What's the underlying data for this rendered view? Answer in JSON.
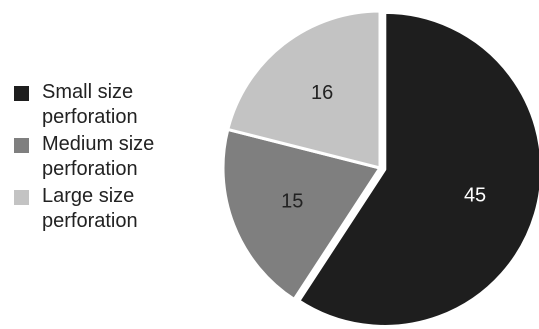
{
  "chart_data": {
    "type": "pie",
    "categories": [
      "Small size perforation",
      "Medium size perforation",
      "Large size perforation"
    ],
    "values": [
      45,
      15,
      16
    ],
    "legend": {
      "position": "left",
      "entries": [
        {
          "line1": "Small size",
          "line2": "perforation"
        },
        {
          "line1": "Medium size",
          "line2": "perforation"
        },
        {
          "line1": "Large size",
          "line2": "perforation"
        }
      ]
    },
    "colors": [
      "#1e1e1e",
      "#7f7f7f",
      "#c3c3c3"
    ],
    "label_colors": [
      "#ffffff",
      "#222222",
      "#222222"
    ],
    "start_angle_deg": 0,
    "direction": "clockwise",
    "exploded_slice": 0
  }
}
